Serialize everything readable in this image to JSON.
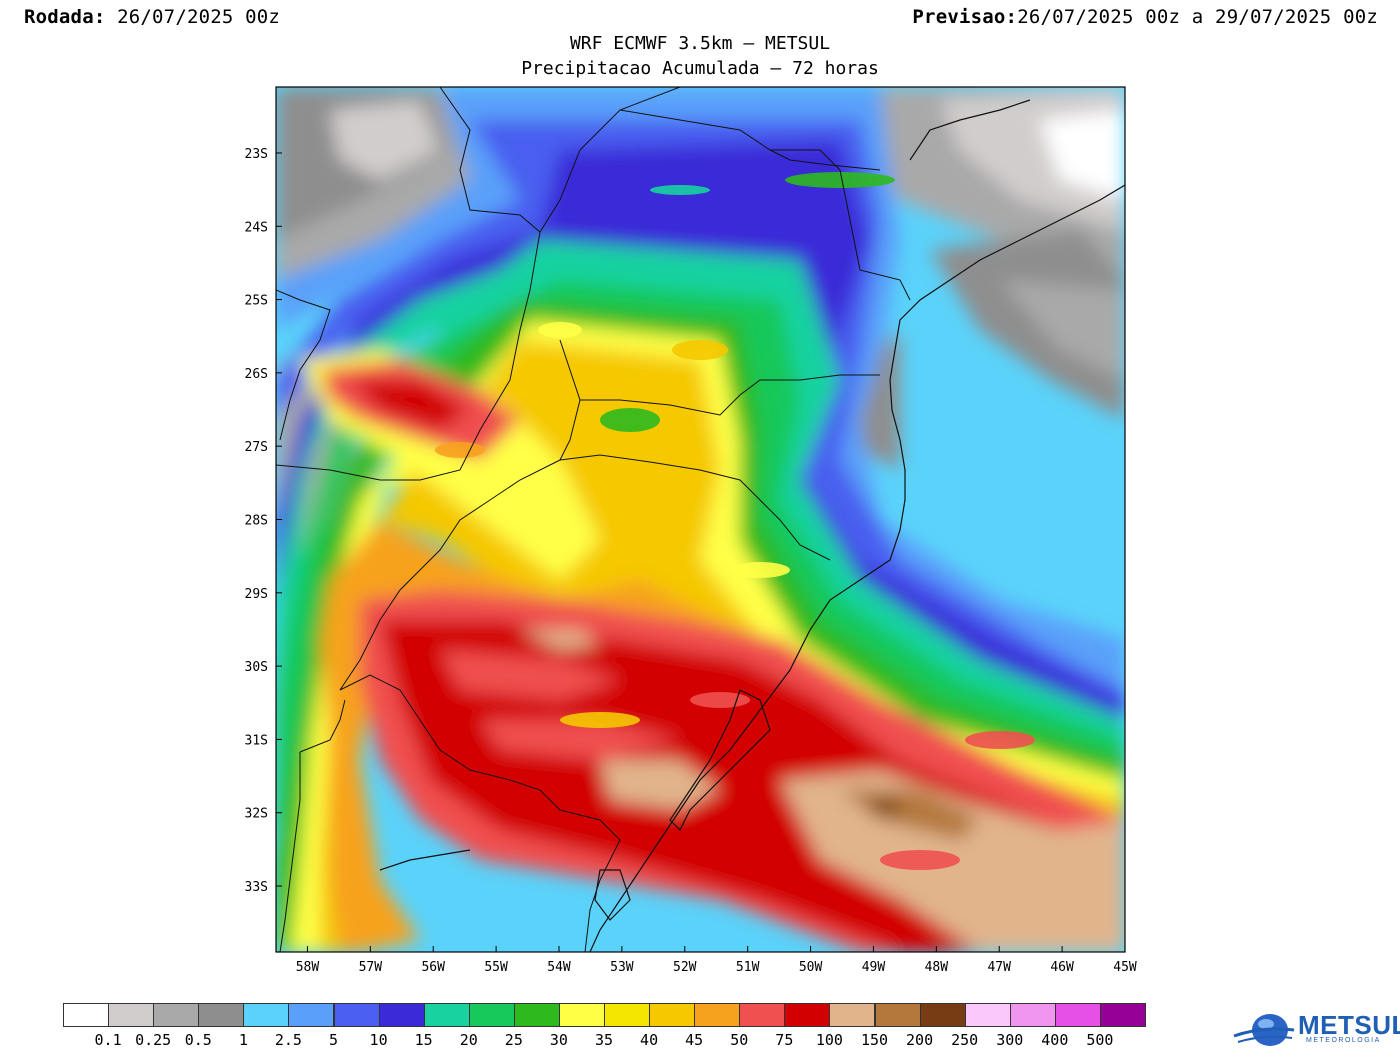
{
  "header": {
    "run_label": "Rodada:",
    "run_value": "26/07/2025 00z",
    "forecast_label": "Previsao:",
    "forecast_value": "26/07/2025 00z a 29/07/2025 00z"
  },
  "title": {
    "line1": "WRF ECMWF 3.5km – METSUL",
    "line2": "Precipitacao Acumulada – 72 horas"
  },
  "map": {
    "lat_labels": [
      "23S",
      "24S",
      "25S",
      "26S",
      "27S",
      "28S",
      "29S",
      "30S",
      "31S",
      "32S",
      "33S"
    ],
    "lon_labels": [
      "58W",
      "57W",
      "56W",
      "55W",
      "54W",
      "53W",
      "52W",
      "51W",
      "50W",
      "49W",
      "48W",
      "47W",
      "46W",
      "45W"
    ],
    "lon_range": [
      -58.5,
      -45
    ],
    "lat_range": [
      -33.9,
      -22.1
    ]
  },
  "colorbar": {
    "labels": [
      "0.1",
      "0.25",
      "0.5",
      "1",
      "2.5",
      "5",
      "10",
      "15",
      "20",
      "25",
      "30",
      "35",
      "40",
      "45",
      "50",
      "75",
      "100",
      "150",
      "200",
      "250",
      "300",
      "400",
      "500"
    ],
    "colors": [
      "#ffffff",
      "#d2cdcd",
      "#a9a9a9",
      "#8e8e8e",
      "#5ad2fa",
      "#5aa0fa",
      "#4a5ef0",
      "#3a2ad8",
      "#18d2a0",
      "#17c85a",
      "#2eb91e",
      "#ffff46",
      "#f5e600",
      "#f5c800",
      "#f7a21e",
      "#f05050",
      "#d20000",
      "#e1b48c",
      "#b4783c",
      "#783c14",
      "#fac8fa",
      "#f096f0",
      "#e650e6",
      "#960096"
    ]
  },
  "logo": {
    "text": "METSUL",
    "subtext": "METEOROLOGIA"
  }
}
